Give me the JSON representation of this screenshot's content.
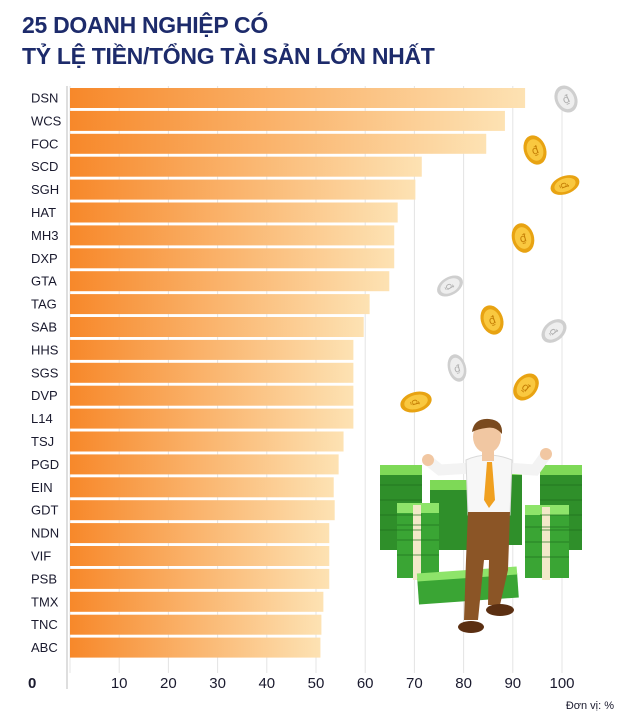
{
  "title": {
    "line1": "25 DOANH NGHIỆP CÓ",
    "line2": "TỶ LỆ TIỀN/TỔNG TÀI SẢN LỚN NHẤT"
  },
  "unit_label": "Đơn vị: %",
  "colors": {
    "title": "#1d2b6b",
    "bar_start": "#f7882a",
    "bar_end": "#fde2b3",
    "grid": "#e4e4e4",
    "label": "#1a1a2e"
  },
  "chart_data": {
    "type": "bar",
    "orientation": "horizontal",
    "title": "25 DOANH NGHIỆP CÓ TỶ LỆ TIỀN/TỔNG TÀI SẢN LỚN NHẤT",
    "xlabel": "",
    "ylabel": "",
    "xlim": [
      0,
      100
    ],
    "xticks": [
      "0",
      "10",
      "20",
      "30",
      "40",
      "50",
      "60",
      "70",
      "80",
      "90",
      "100"
    ],
    "grid": true,
    "categories": [
      "DSN",
      "WCS",
      "FOC",
      "SCD",
      "SGH",
      "HAT",
      "MH3",
      "DXP",
      "GTA",
      "TAG",
      "SAB",
      "HHS",
      "SGS",
      "DVP",
      "L14",
      "TSJ",
      "PGD",
      "EIN",
      "GDT",
      "NDN",
      "VIF",
      "PSB",
      "TMX",
      "TNC",
      "ABC"
    ],
    "values": [
      92.5,
      88.4,
      84.6,
      71.5,
      70.2,
      66.6,
      65.9,
      65.9,
      64.9,
      60.9,
      59.7,
      57.6,
      57.6,
      57.6,
      57.6,
      55.6,
      54.6,
      53.6,
      53.8,
      52.7,
      52.7,
      52.7,
      51.5,
      51.1,
      50.9
    ],
    "unit": "%"
  }
}
